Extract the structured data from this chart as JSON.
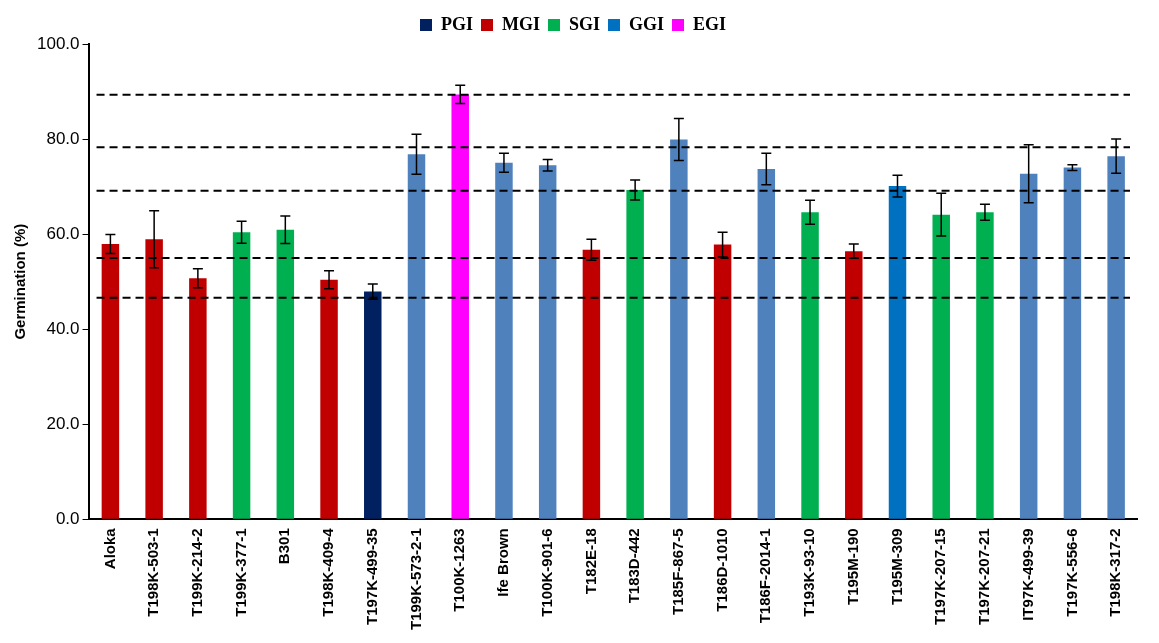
{
  "chart_data": {
    "type": "bar",
    "ylabel": "Germination (%)",
    "categories": [
      "Aloka",
      "T198K-503-1",
      "T199K-214-2",
      "T199K-377-1",
      "B301",
      "T198K-409-4",
      "T197K-499-35",
      "T199K-573-2-1",
      "T100K-1263",
      "Ife Brown",
      "T100K-901-6",
      "T182E-18",
      "T183D-442",
      "T185F-867-5",
      "T186D-1010",
      "T186F-2014-1",
      "T193K-93-10",
      "T195M-190",
      "T195M-309",
      "T197K-207-15",
      "T197K-207-21",
      "IT97K-499-39",
      "T197K-556-6",
      "T198K-317-2"
    ],
    "series": [
      {
        "name": "PGI",
        "color": "#002060",
        "values": [
          null,
          null,
          null,
          null,
          null,
          null,
          47.9,
          null,
          null,
          null,
          null,
          null,
          null,
          null,
          null,
          null,
          null,
          null,
          null,
          null,
          null,
          null,
          null,
          null
        ],
        "errors": [
          null,
          null,
          null,
          null,
          null,
          null,
          1.6,
          null,
          null,
          null,
          null,
          null,
          null,
          null,
          null,
          null,
          null,
          null,
          null,
          null,
          null,
          null,
          null,
          null
        ]
      },
      {
        "name": "MGI",
        "color": "#c00000",
        "values": [
          57.9,
          58.9,
          50.7,
          null,
          null,
          50.4,
          null,
          null,
          null,
          null,
          null,
          56.7,
          null,
          null,
          57.8,
          null,
          null,
          56.4,
          null,
          null,
          null,
          null,
          null,
          null
        ],
        "errors": [
          2.0,
          6.0,
          2.0,
          null,
          null,
          1.9,
          null,
          null,
          null,
          null,
          null,
          2.2,
          null,
          null,
          2.6,
          null,
          null,
          1.5,
          null,
          null,
          null,
          null,
          null,
          null
        ]
      },
      {
        "name": "SGI",
        "color": "#00b050",
        "values": [
          null,
          null,
          null,
          60.4,
          60.9,
          null,
          null,
          null,
          null,
          null,
          null,
          null,
          69.3,
          null,
          null,
          null,
          64.6,
          null,
          null,
          64.1,
          64.6,
          null,
          null,
          null
        ],
        "errors": [
          null,
          null,
          null,
          2.3,
          2.9,
          null,
          null,
          null,
          null,
          null,
          null,
          null,
          2.1,
          null,
          null,
          null,
          2.5,
          null,
          null,
          4.5,
          1.7,
          null,
          null,
          null
        ]
      },
      {
        "name": "GGI",
        "color": "#0070c0",
        "values": [
          null,
          null,
          null,
          null,
          null,
          null,
          null,
          null,
          null,
          null,
          null,
          null,
          null,
          null,
          null,
          null,
          null,
          null,
          70.1,
          null,
          null,
          null,
          null,
          null
        ],
        "errors": [
          null,
          null,
          null,
          null,
          null,
          null,
          null,
          null,
          null,
          null,
          null,
          null,
          null,
          null,
          null,
          null,
          null,
          null,
          2.3,
          null,
          null,
          null,
          null,
          null
        ]
      },
      {
        "name": "EGI",
        "color": "#ff00ff",
        "values": [
          null,
          null,
          null,
          null,
          null,
          null,
          null,
          null,
          89.4,
          null,
          null,
          null,
          null,
          null,
          null,
          null,
          null,
          null,
          null,
          null,
          null,
          null,
          null,
          null
        ],
        "errors": [
          null,
          null,
          null,
          null,
          null,
          null,
          null,
          null,
          1.9,
          null,
          null,
          null,
          null,
          null,
          null,
          null,
          null,
          null,
          null,
          null,
          null,
          null,
          null,
          null
        ]
      },
      {
        "color": "#4f81bd",
        "values": [
          null,
          null,
          null,
          null,
          null,
          null,
          null,
          76.8,
          null,
          75.0,
          74.5,
          null,
          null,
          79.9,
          null,
          73.7,
          null,
          null,
          null,
          null,
          null,
          72.7,
          74.0,
          76.4
        ],
        "errors": [
          null,
          null,
          null,
          null,
          null,
          null,
          null,
          4.2,
          null,
          2.0,
          1.2,
          null,
          null,
          4.4,
          null,
          3.3,
          null,
          null,
          null,
          null,
          null,
          6.1,
          0.6,
          3.6
        ]
      }
    ],
    "ylim": [
      0,
      100
    ],
    "yticks": [
      {
        "value": 0,
        "label": "0.0"
      },
      {
        "value": 20,
        "label": "20.0"
      },
      {
        "value": 40,
        "label": "40.0"
      },
      {
        "value": 60,
        "label": "60.0"
      },
      {
        "value": 80,
        "label": "80.0"
      },
      {
        "value": 100,
        "label": "100.0"
      }
    ],
    "ref_lines": [
      {
        "axis": "y",
        "value": 46.6,
        "color": "#000000",
        "line_style": "dashed"
      },
      {
        "axis": "y",
        "value": 55,
        "color": "#000000",
        "line_style": "dashed"
      },
      {
        "axis": "y",
        "value": 69.1,
        "color": "#000000",
        "line_style": "dashed"
      },
      {
        "axis": "y",
        "value": 78.3,
        "color": "#000000",
        "line_style": "dashed"
      },
      {
        "axis": "y",
        "value": 89.3,
        "color": "#000000",
        "line_style": "dashed"
      }
    ],
    "grid": false,
    "legend": "top"
  }
}
